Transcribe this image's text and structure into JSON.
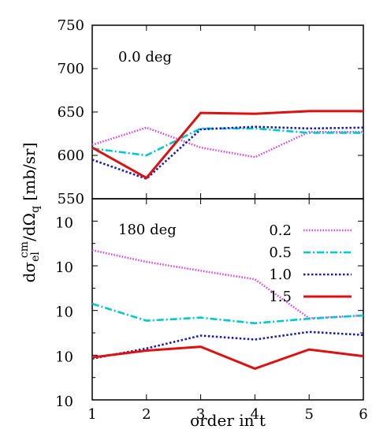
{
  "chart_data": {
    "type": "line",
    "xlabel": "order in t",
    "ylabel_parts": {
      "main": "dσ",
      "sub1": "el",
      "sup": "cm",
      "mid": "/dΩ",
      "sub2": "q",
      "unit": " [mb/sr]"
    },
    "x_ticks": [
      "1",
      "2",
      "3",
      "4",
      "5",
      "6"
    ],
    "xlim": [
      1,
      6
    ],
    "legend_title": "",
    "series_styles": [
      {
        "name": "0.2",
        "color": "#e040e0",
        "dash": "1.5 2"
      },
      {
        "name": "0.5",
        "color": "#00c8d0",
        "dash": "9 3 2 3"
      },
      {
        "name": "1.0",
        "color": "#1a1ab8",
        "dash": "2.5 2.5"
      },
      {
        "name": "1.5",
        "color": "#dd1111",
        "dash": ""
      }
    ],
    "panels": [
      {
        "label": "0.0 deg",
        "scale": "linear",
        "ylim": [
          550,
          750
        ],
        "y_ticks": [
          "550",
          "600",
          "650",
          "700",
          "750"
        ],
        "y_tick_values": [
          550,
          600,
          650,
          700,
          750
        ],
        "x": [
          1,
          2,
          3,
          4,
          5,
          6
        ],
        "series": [
          {
            "name": "0.2",
            "values": [
              612,
              632,
              609,
              598,
              627,
              627
            ]
          },
          {
            "name": "0.5",
            "values": [
              608,
              600,
              631,
              631,
              626,
              626
            ]
          },
          {
            "name": "1.0",
            "values": [
              595,
              573,
              630,
              633,
              631,
              632
            ]
          },
          {
            "name": "1.5",
            "values": [
              609,
              574,
              649,
              648,
              651,
              651
            ]
          }
        ]
      },
      {
        "label": "180 deg",
        "scale": "log",
        "ylim": [
          1e-06,
          1000
        ],
        "y_ticks": [
          {
            "base": "10",
            "exp": "-6",
            "value": 1e-06
          },
          {
            "base": "10",
            "exp": "-4",
            "value": 0.0001
          },
          {
            "base": "10",
            "exp": "-2",
            "value": 0.01
          },
          {
            "base": "10",
            "exp": "0",
            "value": 1
          },
          {
            "base": "10",
            "exp": "2",
            "value": 100
          }
        ],
        "x": [
          1,
          2,
          3,
          4,
          5,
          6
        ],
        "series": [
          {
            "name": "0.2",
            "values": [
              5.0,
              1.5,
              0.6,
              0.25,
              0.0045,
              0.006
            ]
          },
          {
            "name": "0.5",
            "values": [
              0.02,
              0.0035,
              0.0048,
              0.0027,
              0.0043,
              0.006
            ]
          },
          {
            "name": "1.0",
            "values": [
              7e-05,
              0.0002,
              0.00075,
              0.0005,
              0.0011,
              0.0008
            ]
          },
          {
            "name": "1.5",
            "values": [
              8e-05,
              0.00016,
              0.00024,
              2.5e-05,
              0.00018,
              9e-05
            ]
          }
        ]
      }
    ]
  }
}
